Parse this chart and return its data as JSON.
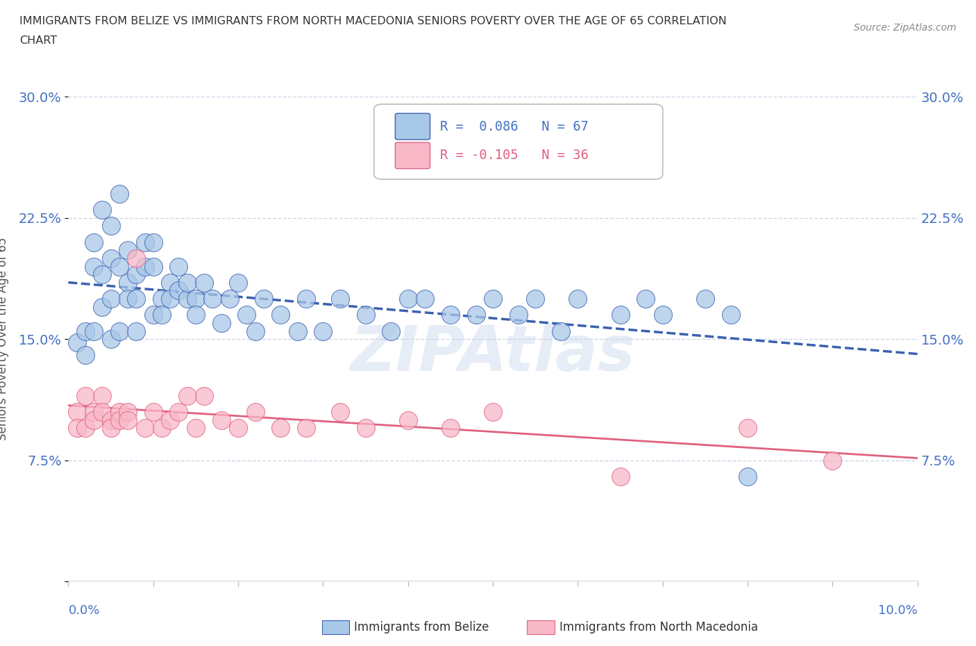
{
  "title_line1": "IMMIGRANTS FROM BELIZE VS IMMIGRANTS FROM NORTH MACEDONIA SENIORS POVERTY OVER THE AGE OF 65 CORRELATION",
  "title_line2": "CHART",
  "source": "Source: ZipAtlas.com",
  "ylabel": "Seniors Poverty Over the Age of 65",
  "yticks": [
    0.0,
    0.075,
    0.15,
    0.225,
    0.3
  ],
  "ytick_labels": [
    "",
    "7.5%",
    "15.0%",
    "22.5%",
    "30.0%"
  ],
  "xlim": [
    0.0,
    0.1
  ],
  "ylim": [
    0.0,
    0.3
  ],
  "legend_r_belize": "R =  0.086",
  "legend_n_belize": "N = 67",
  "legend_r_macedonia": "R = -0.105",
  "legend_n_macedonia": "N = 36",
  "color_belize": "#a8c8e8",
  "color_macedonia": "#f8b8c8",
  "trendline_belize_color": "#3a60b0",
  "trendline_macedonia_color": "#e06080",
  "belize_x": [
    0.001,
    0.002,
    0.002,
    0.003,
    0.003,
    0.003,
    0.004,
    0.004,
    0.004,
    0.005,
    0.005,
    0.005,
    0.005,
    0.006,
    0.006,
    0.006,
    0.007,
    0.007,
    0.007,
    0.008,
    0.008,
    0.008,
    0.009,
    0.009,
    0.01,
    0.01,
    0.01,
    0.011,
    0.011,
    0.012,
    0.012,
    0.013,
    0.013,
    0.014,
    0.014,
    0.015,
    0.015,
    0.016,
    0.017,
    0.018,
    0.019,
    0.02,
    0.021,
    0.022,
    0.023,
    0.025,
    0.027,
    0.028,
    0.03,
    0.032,
    0.035,
    0.038,
    0.04,
    0.042,
    0.045,
    0.048,
    0.05,
    0.053,
    0.055,
    0.058,
    0.06,
    0.065,
    0.068,
    0.07,
    0.075,
    0.078,
    0.08
  ],
  "belize_y": [
    0.148,
    0.155,
    0.14,
    0.195,
    0.21,
    0.155,
    0.23,
    0.19,
    0.17,
    0.22,
    0.2,
    0.175,
    0.15,
    0.24,
    0.195,
    0.155,
    0.205,
    0.185,
    0.175,
    0.19,
    0.175,
    0.155,
    0.21,
    0.195,
    0.21,
    0.195,
    0.165,
    0.175,
    0.165,
    0.185,
    0.175,
    0.195,
    0.18,
    0.175,
    0.185,
    0.175,
    0.165,
    0.185,
    0.175,
    0.16,
    0.175,
    0.185,
    0.165,
    0.155,
    0.175,
    0.165,
    0.155,
    0.175,
    0.155,
    0.175,
    0.165,
    0.155,
    0.175,
    0.175,
    0.165,
    0.165,
    0.175,
    0.165,
    0.175,
    0.155,
    0.175,
    0.165,
    0.175,
    0.165,
    0.175,
    0.165,
    0.065
  ],
  "macedonia_x": [
    0.001,
    0.001,
    0.002,
    0.002,
    0.003,
    0.003,
    0.004,
    0.004,
    0.005,
    0.005,
    0.006,
    0.006,
    0.007,
    0.007,
    0.008,
    0.009,
    0.01,
    0.011,
    0.012,
    0.013,
    0.014,
    0.015,
    0.016,
    0.018,
    0.02,
    0.022,
    0.025,
    0.028,
    0.032,
    0.035,
    0.04,
    0.045,
    0.05,
    0.065,
    0.08,
    0.09
  ],
  "macedonia_y": [
    0.105,
    0.095,
    0.115,
    0.095,
    0.105,
    0.1,
    0.115,
    0.105,
    0.1,
    0.095,
    0.105,
    0.1,
    0.105,
    0.1,
    0.2,
    0.095,
    0.105,
    0.095,
    0.1,
    0.105,
    0.115,
    0.095,
    0.115,
    0.1,
    0.095,
    0.105,
    0.095,
    0.095,
    0.105,
    0.095,
    0.1,
    0.095,
    0.105,
    0.065,
    0.095,
    0.075
  ]
}
